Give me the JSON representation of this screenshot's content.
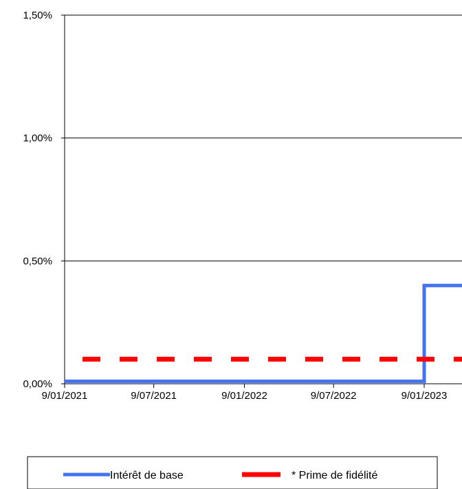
{
  "chart_data": {
    "type": "line",
    "title": "",
    "xlabel": "",
    "ylabel": "",
    "x_tick_labels": [
      "9/01/2021",
      "9/07/2021",
      "9/01/2022",
      "9/07/2022",
      "9/01/2023"
    ],
    "x_tick_dates": [
      "2021-01-09",
      "2021-07-09",
      "2022-01-09",
      "2022-07-09",
      "2023-01-09"
    ],
    "y_tick_labels": [
      "0,00%",
      "0,50%",
      "1,00%",
      "1,50%"
    ],
    "y_tick_values": [
      0.0,
      0.5,
      1.0,
      1.5
    ],
    "ylim": [
      0.0,
      1.5
    ],
    "grid": true,
    "legend_position": "bottom",
    "series": [
      {
        "name": "Intérêt de base",
        "style": "solid-step",
        "color": "#4472F4",
        "x": [
          "2021-01-09",
          "2023-01-09",
          "2023-01-09",
          "2023-04-01"
        ],
        "y": [
          0.01,
          0.01,
          0.4,
          0.4
        ]
      },
      {
        "name": "* Prime de fidélité",
        "style": "dashed",
        "color": "#FF0000",
        "x": [
          "2021-01-09",
          "2023-04-01"
        ],
        "y": [
          0.1,
          0.1
        ]
      }
    ]
  }
}
